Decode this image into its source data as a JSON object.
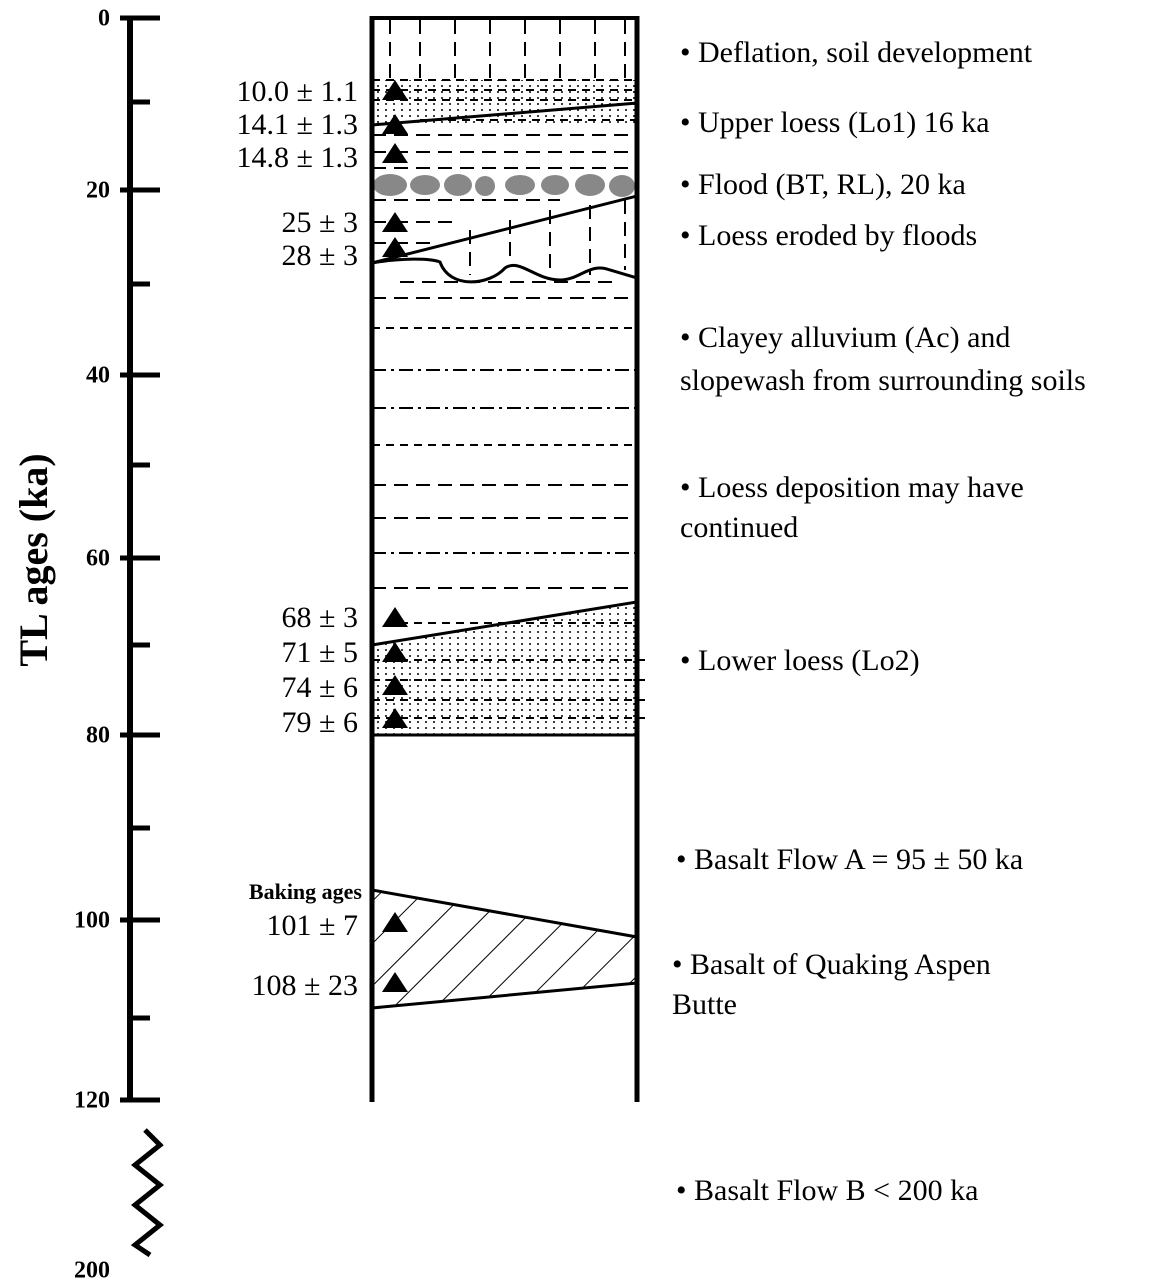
{
  "axis": {
    "title": "TL ages (ka)",
    "ticks": [
      "0",
      "20",
      "40",
      "60",
      "80",
      "100",
      "120",
      "200"
    ]
  },
  "samples": [
    "10.0 ± 1.1",
    "14.1 ± 1.3",
    "14.8 ± 1.3",
    "25 ± 3",
    "28 ± 3",
    "68 ± 3",
    "71 ± 5",
    "74 ± 6",
    "79 ± 6",
    "101 ± 7",
    "108 ± 23"
  ],
  "baking_label": "Baking ages",
  "descriptions": [
    [
      "• Deflation, soil development"
    ],
    [
      "• Upper loess (Lo1) 16 ka"
    ],
    [
      "• Flood (BT, RL), 20 ka"
    ],
    [
      "• Loess eroded by floods"
    ],
    [
      "• Clayey alluvium (Ac) and",
      "slopewash from surrounding soils"
    ],
    [
      "• Loess deposition may have",
      "continued"
    ],
    [
      "• Lower loess (Lo2)"
    ],
    [
      "• Basalt Flow A =  95 ± 50 ka"
    ],
    [
      "• Basalt of Quaking Aspen",
      "Butte"
    ],
    [
      "• Basalt Flow B < 200 ka"
    ]
  ]
}
